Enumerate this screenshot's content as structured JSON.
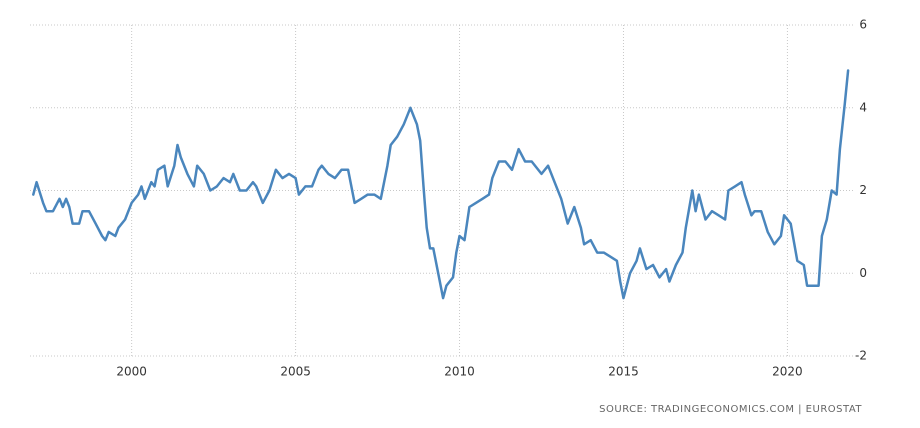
{
  "chart_data": {
    "type": "line",
    "source": "SOURCE: TRADINGECONOMICS.COM  |  EUROSTAT",
    "x": [
      1997.0,
      1997.1,
      1997.3,
      1997.4,
      1997.6,
      1997.8,
      1997.9,
      1998.0,
      1998.1,
      1998.2,
      1998.4,
      1998.5,
      1998.7,
      1998.9,
      1999.1,
      1999.2,
      1999.3,
      1999.5,
      1999.6,
      1999.8,
      2000.0,
      2000.2,
      2000.3,
      2000.4,
      2000.6,
      2000.7,
      2000.8,
      2001.0,
      2001.1,
      2001.3,
      2001.4,
      2001.5,
      2001.7,
      2001.9,
      2002.0,
      2002.2,
      2002.4,
      2002.6,
      2002.8,
      2003.0,
      2003.1,
      2003.3,
      2003.5,
      2003.7,
      2003.8,
      2004.0,
      2004.2,
      2004.4,
      2004.6,
      2004.8,
      2005.0,
      2005.1,
      2005.3,
      2005.5,
      2005.7,
      2005.8,
      2006.0,
      2006.2,
      2006.4,
      2006.6,
      2006.8,
      2007.0,
      2007.2,
      2007.4,
      2007.6,
      2007.8,
      2007.9,
      2008.1,
      2008.3,
      2008.5,
      2008.6,
      2008.7,
      2008.8,
      2008.9,
      2009.0,
      2009.1,
      2009.2,
      2009.35,
      2009.5,
      2009.6,
      2009.8,
      2009.9,
      2010.0,
      2010.15,
      2010.3,
      2010.5,
      2010.7,
      2010.9,
      2011.0,
      2011.2,
      2011.4,
      2011.6,
      2011.8,
      2012.0,
      2012.2,
      2012.5,
      2012.7,
      2012.9,
      2013.1,
      2013.3,
      2013.5,
      2013.7,
      2013.8,
      2014.0,
      2014.2,
      2014.4,
      2014.6,
      2014.8,
      2014.9,
      2015.0,
      2015.2,
      2015.4,
      2015.5,
      2015.7,
      2015.9,
      2016.1,
      2016.3,
      2016.4,
      2016.6,
      2016.8,
      2016.9,
      2017.1,
      2017.2,
      2017.3,
      2017.5,
      2017.7,
      2017.9,
      2018.1,
      2018.2,
      2018.4,
      2018.6,
      2018.7,
      2018.9,
      2019.0,
      2019.2,
      2019.4,
      2019.6,
      2019.8,
      2019.9,
      2020.1,
      2020.3,
      2020.5,
      2020.6,
      2020.8,
      2020.95,
      2021.05,
      2021.2,
      2021.35,
      2021.5,
      2021.6,
      2021.75,
      2021.85
    ],
    "series": [
      {
        "color": "#4a86bd",
        "values": [
          1.9,
          2.2,
          1.7,
          1.5,
          1.5,
          1.8,
          1.6,
          1.8,
          1.6,
          1.2,
          1.2,
          1.5,
          1.5,
          1.2,
          0.9,
          0.8,
          1.0,
          0.9,
          1.1,
          1.3,
          1.7,
          1.9,
          2.1,
          1.8,
          2.2,
          2.1,
          2.5,
          2.6,
          2.1,
          2.6,
          3.1,
          2.8,
          2.4,
          2.1,
          2.6,
          2.4,
          2.0,
          2.1,
          2.3,
          2.2,
          2.4,
          2.0,
          2.0,
          2.2,
          2.1,
          1.7,
          2.0,
          2.5,
          2.3,
          2.4,
          2.3,
          1.9,
          2.1,
          2.1,
          2.5,
          2.6,
          2.4,
          2.3,
          2.5,
          2.5,
          1.7,
          1.8,
          1.9,
          1.9,
          1.8,
          2.6,
          3.1,
          3.3,
          3.6,
          4.0,
          3.8,
          3.6,
          3.2,
          2.1,
          1.1,
          0.6,
          0.6,
          0.0,
          -0.6,
          -0.3,
          -0.1,
          0.5,
          0.9,
          0.8,
          1.6,
          1.7,
          1.8,
          1.9,
          2.3,
          2.7,
          2.7,
          2.5,
          3.0,
          2.7,
          2.7,
          2.4,
          2.6,
          2.2,
          1.8,
          1.2,
          1.6,
          1.1,
          0.7,
          0.8,
          0.5,
          0.5,
          0.4,
          0.3,
          -0.2,
          -0.6,
          0.0,
          0.3,
          0.6,
          0.1,
          0.2,
          -0.1,
          0.1,
          -0.2,
          0.2,
          0.5,
          1.1,
          2.0,
          1.5,
          1.9,
          1.3,
          1.5,
          1.4,
          1.3,
          2.0,
          2.1,
          2.2,
          1.9,
          1.4,
          1.5,
          1.5,
          1.0,
          0.7,
          0.9,
          1.4,
          1.2,
          0.3,
          0.2,
          -0.3,
          -0.3,
          -0.3,
          0.9,
          1.3,
          2.0,
          1.9,
          3.0,
          4.1,
          4.9
        ]
      }
    ],
    "xlim": [
      1996.9,
      2022
    ],
    "xticks": [
      2000,
      2005,
      2010,
      2015,
      2020
    ],
    "ylim": [
      -2,
      6
    ],
    "yticks": [
      -2,
      0,
      2,
      4,
      6
    ],
    "grid": true
  }
}
